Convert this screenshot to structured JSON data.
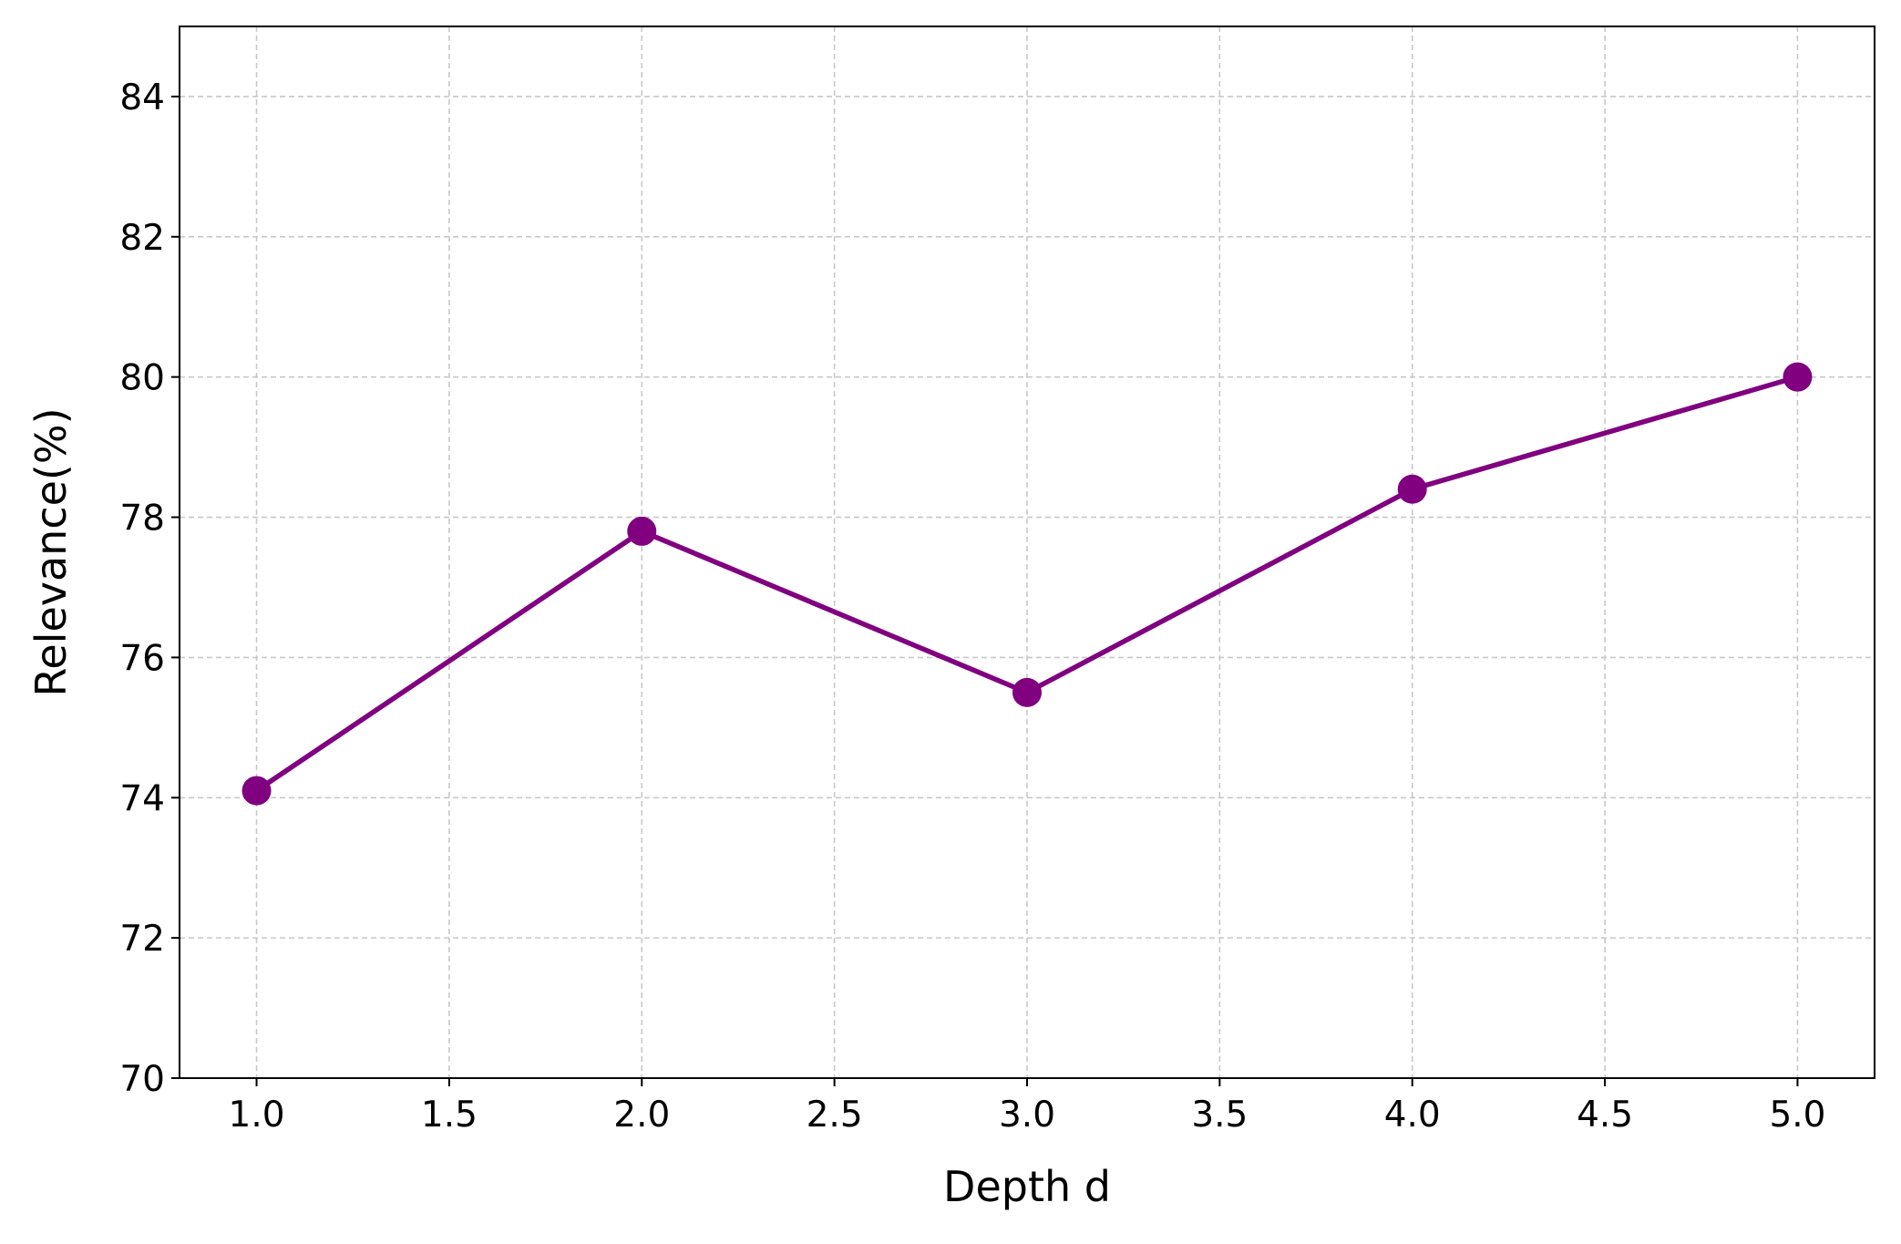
{
  "chart_data": {
    "type": "line",
    "x_label": "Depth d",
    "y_label": "Relevance(%)",
    "x": [
      1,
      2,
      3,
      4,
      5
    ],
    "series": [
      {
        "name": "Relevance",
        "color": "#800080",
        "values": [
          74.1,
          77.8,
          75.5,
          78.4,
          80.0
        ]
      }
    ],
    "xlim": [
      0.8,
      5.2
    ],
    "xticks": [
      {
        "value": 1,
        "label": "1.0"
      },
      {
        "value": 1.5,
        "label": "1.5"
      },
      {
        "value": 2,
        "label": "2.0"
      },
      {
        "value": 2.5,
        "label": "2.5"
      },
      {
        "value": 3,
        "label": "3.0"
      },
      {
        "value": 3.5,
        "label": "3.5"
      },
      {
        "value": 4,
        "label": "4.0"
      },
      {
        "value": 4.5,
        "label": "4.5"
      },
      {
        "value": 5,
        "label": "5.0"
      }
    ],
    "ylim": [
      70,
      85
    ],
    "yticks": [
      70,
      72,
      74,
      76,
      78,
      80,
      82,
      84
    ],
    "grid": true
  }
}
